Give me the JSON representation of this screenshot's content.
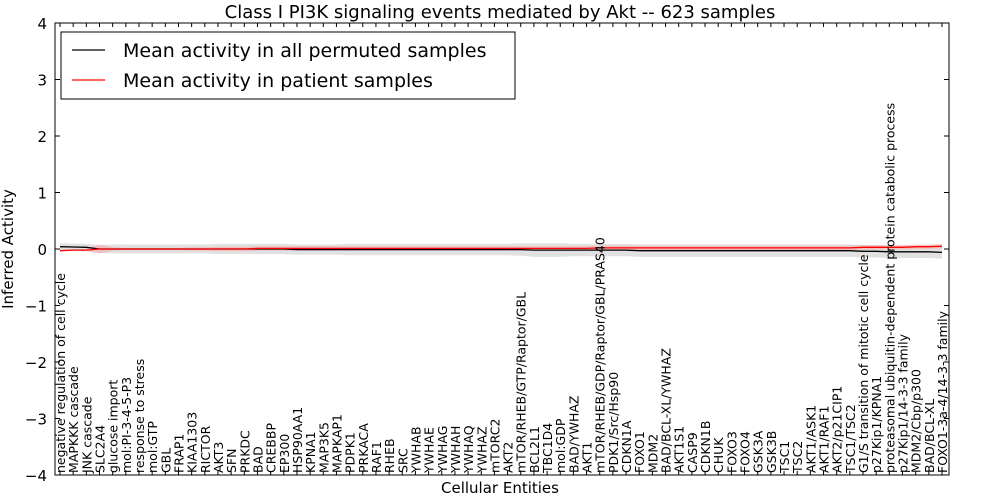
{
  "chart_data": {
    "type": "line",
    "title": "Class I PI3K signaling events mediated by Akt -- 623 samples",
    "xlabel": "Cellular Entities",
    "ylabel": "Inferred Activity",
    "ylim": [
      -4,
      4
    ],
    "yticks": [
      -4,
      -3,
      -2,
      -1,
      0,
      1,
      2,
      3,
      4
    ],
    "ytick_labels": [
      "−4",
      "−3",
      "−2",
      "−1",
      "0",
      "1",
      "2",
      "3",
      "4"
    ],
    "legend_position": "top-left",
    "categories": [
      "negative regulation of cell cycle",
      "MAPKKK cascade",
      "JNK cascade",
      "SLC2A4",
      "glucose import",
      "mol:PI-3-4-5-P3",
      "response to stress",
      "mol:GTP",
      "GBL",
      "FRAP1",
      "KIAA1303",
      "RICTOR",
      "AKT3",
      "SFN",
      "PRKDC",
      "BAD",
      "CREBBP",
      "EP300",
      "HSP90AA1",
      "KPNA1",
      "MAP3K5",
      "MAPKAP1",
      "PDPK1",
      "PRKACA",
      "RAF1",
      "RHEB",
      "SRC",
      "YWHAB",
      "YWHAE",
      "YWHAG",
      "YWHAH",
      "YWHAQ",
      "YWHAZ",
      "mTORC2",
      "AKT2",
      "mTOR/RHEB/GTP/Raptor/GBL",
      "BCL2L1",
      "TBC1D4",
      "mol:GDP",
      "BAD/YWHAZ",
      "AKT1",
      "mTOR/RHEB/GDP/Raptor/GBL/PRAS40",
      "PDK1/Src/Hsp90",
      "CDKN1A",
      "FOXO1",
      "MDM2",
      "BAD/BCL-XL/YWHAZ",
      "AKT1S1",
      "CASP9",
      "CDKN1B",
      "CHUK",
      "FOXO3",
      "FOXO4",
      "GSK3A",
      "GSK3B",
      "TSC1",
      "TSC2",
      "AKT1/ASK1",
      "AKT1/RAF1",
      "AKT2/p21CIP1",
      "TSC1/TSC2",
      "G1/S transition of mitotic cell cycle",
      "p27Kip1/KPNA1",
      "proteasomal ubiquitin-dependent protein catabolic process",
      "p27Kip1/14-3-3 family",
      "MDM2/Cbp/p300",
      "BAD/BCL-XL",
      "FOXO1-3a-4/14-3-3 family"
    ],
    "series": [
      {
        "name": "Mean activity in all permuted samples",
        "color": "#000000",
        "values": [
          0.04,
          0.035,
          0.03,
          0.0,
          0.0,
          0.0,
          0.0,
          0.0,
          0.0,
          0.0,
          0.0,
          0.0,
          0.0,
          0.0,
          0.0,
          0.0,
          0.0,
          0.0,
          -0.01,
          -0.01,
          -0.01,
          -0.01,
          -0.01,
          -0.01,
          -0.01,
          -0.01,
          -0.01,
          -0.01,
          -0.01,
          -0.01,
          -0.01,
          -0.01,
          -0.01,
          -0.01,
          -0.01,
          -0.01,
          -0.02,
          -0.02,
          -0.02,
          -0.02,
          -0.02,
          -0.02,
          -0.02,
          -0.02,
          -0.03,
          -0.03,
          -0.03,
          -0.03,
          -0.03,
          -0.03,
          -0.03,
          -0.03,
          -0.03,
          -0.03,
          -0.03,
          -0.03,
          -0.03,
          -0.03,
          -0.03,
          -0.03,
          -0.03,
          -0.04,
          -0.04,
          -0.05,
          -0.05,
          -0.05,
          -0.05,
          -0.06
        ],
        "band": [
          0.06,
          0.06,
          0.06,
          0.07,
          0.08,
          0.08,
          0.08,
          0.08,
          0.08,
          0.08,
          0.08,
          0.08,
          0.09,
          0.09,
          0.09,
          0.09,
          0.09,
          0.09,
          0.09,
          0.09,
          0.09,
          0.09,
          0.1,
          0.1,
          0.1,
          0.1,
          0.1,
          0.1,
          0.1,
          0.1,
          0.1,
          0.1,
          0.1,
          0.1,
          0.1,
          0.11,
          0.12,
          0.12,
          0.12,
          0.11,
          0.11,
          0.11,
          0.11,
          0.11,
          0.11,
          0.11,
          0.11,
          0.11,
          0.11,
          0.11,
          0.11,
          0.11,
          0.11,
          0.11,
          0.11,
          0.11,
          0.11,
          0.11,
          0.11,
          0.11,
          0.11,
          0.11,
          0.11,
          0.11,
          0.11,
          0.11,
          0.11,
          0.11
        ]
      },
      {
        "name": "Mean activity in patient samples",
        "color": "#ff0000",
        "values": [
          -0.03,
          -0.02,
          -0.02,
          0.0,
          0.0,
          0.0,
          0.0,
          0.0,
          0.0,
          0.0,
          0.0,
          0.0,
          0.0,
          0.0,
          0.0,
          0.01,
          0.01,
          0.01,
          0.01,
          0.01,
          0.01,
          0.01,
          0.01,
          0.01,
          0.01,
          0.01,
          0.01,
          0.01,
          0.01,
          0.01,
          0.01,
          0.01,
          0.01,
          0.01,
          0.01,
          0.01,
          0.01,
          0.01,
          0.01,
          0.01,
          0.01,
          0.02,
          0.02,
          0.02,
          0.02,
          0.02,
          0.02,
          0.02,
          0.02,
          0.02,
          0.02,
          0.02,
          0.02,
          0.02,
          0.02,
          0.02,
          0.02,
          0.02,
          0.02,
          0.02,
          0.02,
          0.03,
          0.03,
          0.03,
          0.03,
          0.04,
          0.04,
          0.05
        ],
        "band": [
          0.01,
          0.01,
          0.02,
          0.08,
          0.03,
          0.02,
          0.02,
          0.02,
          0.02,
          0.02,
          0.03,
          0.03,
          0.04,
          0.04,
          0.04,
          0.04,
          0.04,
          0.04,
          0.04,
          0.04,
          0.04,
          0.04,
          0.04,
          0.04,
          0.04,
          0.04,
          0.04,
          0.04,
          0.04,
          0.04,
          0.04,
          0.04,
          0.04,
          0.04,
          0.04,
          0.04,
          0.04,
          0.04,
          0.04,
          0.04,
          0.04,
          0.04,
          0.04,
          0.04,
          0.04,
          0.04,
          0.04,
          0.04,
          0.04,
          0.04,
          0.04,
          0.04,
          0.04,
          0.04,
          0.04,
          0.04,
          0.04,
          0.04,
          0.04,
          0.04,
          0.04,
          0.04,
          0.04,
          0.04,
          0.04,
          0.04,
          0.04,
          0.04
        ]
      }
    ]
  }
}
